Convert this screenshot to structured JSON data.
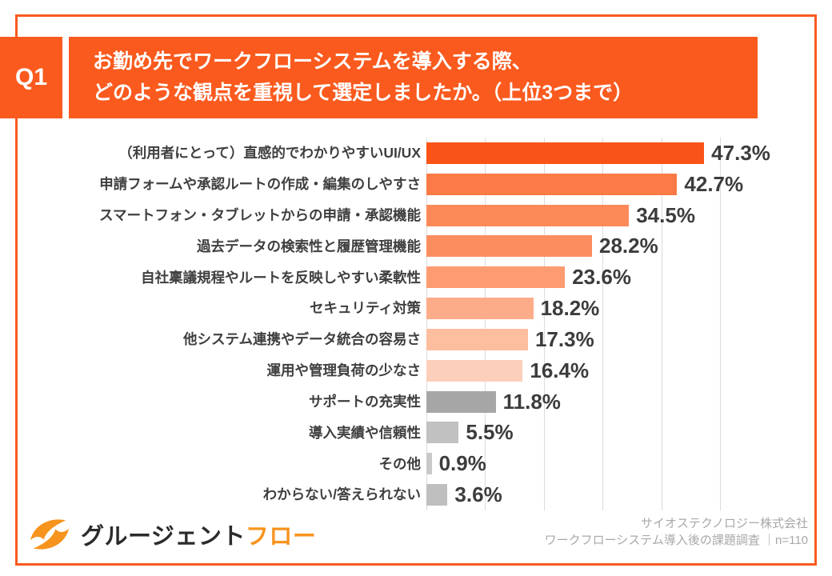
{
  "header": {
    "question_number": "Q1",
    "title_line1": "お勤め先でワークフローシステムを導入する際、",
    "title_line2": "どのような観点を重視して選定しましたか。（上位3つまで）"
  },
  "chart_data": {
    "type": "bar",
    "orientation": "horizontal",
    "title": "お勤め先でワークフローシステムを導入する際、どのような観点を重視して選定しましたか。（上位3つまで）",
    "unit": "%",
    "sample_size": "n=110",
    "categories": [
      "（利用者にとって）直感的でわかりやすいUI/UX",
      "申請フォームや承認ルートの作成・編集のしやすさ",
      "スマートフォン・タブレットからの申請・承認機能",
      "過去データの検索性と履歴管理機能",
      "自社稟議規程やルートを反映しやすい柔軟性",
      "セキュリティ対策",
      "他システム連携やデータ統合の容易さ",
      "運用や管理負荷の少なさ",
      "サポートの充実性",
      "導入実績や信頼性",
      "その他",
      "わからない/答えられない"
    ],
    "values": [
      47.3,
      42.7,
      34.5,
      28.2,
      23.6,
      18.2,
      17.3,
      16.4,
      11.8,
      5.5,
      0.9,
      3.6
    ],
    "value_labels": [
      "47.3%",
      "42.7%",
      "34.5%",
      "28.2%",
      "23.6%",
      "18.2%",
      "17.3%",
      "16.4%",
      "11.8%",
      "5.5%",
      "0.9%",
      "3.6%"
    ],
    "bar_colors": [
      "#F95318",
      "#FB7A45",
      "#FC8A59",
      "#FC8D5F",
      "#FD9B71",
      "#FDAC89",
      "#FDBD9F",
      "#FBCFBA",
      "#A6A6A6",
      "#C1C1C1",
      "#C9C9C9",
      "#BFBFBF"
    ],
    "xlim": [
      0,
      50
    ],
    "gridline_step": 10,
    "grid": true,
    "legend": false
  },
  "footer": {
    "logo_text_dark": "グルージェント",
    "logo_text_orange": "フロー",
    "source_line1": "サイオステクノロジー株式会社",
    "source_line2": "ワークフローシステム導入後の課題調査 ｜n=110"
  },
  "colors": {
    "accent_orange": "#FA5A1E",
    "logo_orange": "#F7941E",
    "label_text": "#3F3F3F",
    "value_text": "#3C3C3C",
    "source_text": "#A8A8A8",
    "gridline": "#DCDCDC"
  }
}
